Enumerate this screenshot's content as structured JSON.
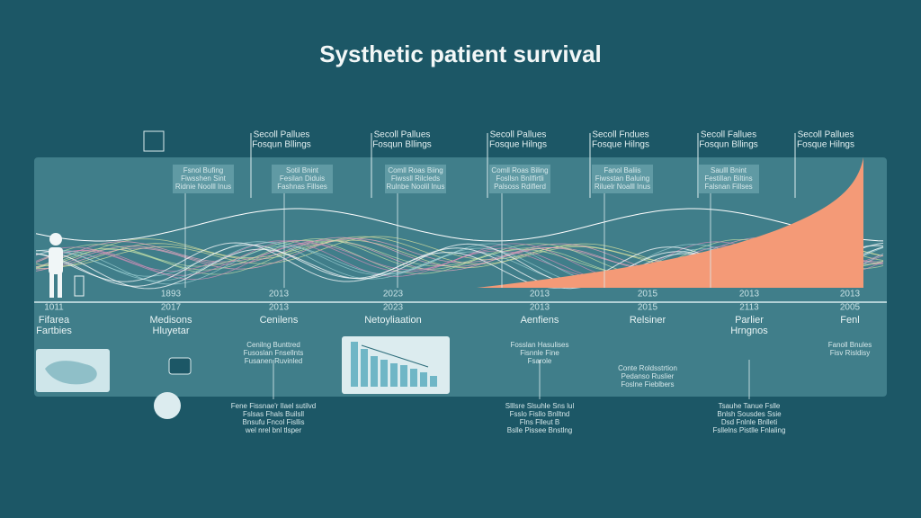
{
  "header": {
    "title": "Systhetic patient survival"
  },
  "top_callouts": [
    {
      "line1": "Secoll Pallues",
      "line2": "Fosqun Bllings"
    },
    {
      "line1": "Secoll Pallues",
      "line2": "Fosqun Bllings"
    },
    {
      "line1": "Secoll Pallues",
      "line2": "Fosque Hilngs"
    },
    {
      "line1": "Secoll Fndues",
      "line2": "Fosque Hilngs"
    },
    {
      "line1": "Secoll Fallues",
      "line2": "Fosqun Bllings"
    },
    {
      "line1": "Secoll Pallues",
      "line2": "Fosque Hilngs"
    }
  ],
  "notes": [
    {
      "lines": [
        "Fsnol Bufing",
        "Fiwsshen Sint",
        "Ridnie Noolll Inus"
      ]
    },
    {
      "lines": [
        "Sotil Bnint",
        "Fesilan Diduis",
        "Fashnas Fillses"
      ]
    },
    {
      "lines": [
        "Comll Roas Biing",
        "Fiwssll Rilcleds",
        "Rulnbe Noolil Inus"
      ]
    },
    {
      "lines": [
        "Comll Roas Biling",
        "Fosllsn Bnllfirtli",
        "Palsoss Rdiflerd"
      ]
    },
    {
      "lines": [
        "Fanol Baliis",
        "Fiwsstan Baluing",
        "Riluelr Noalll Inus"
      ]
    },
    {
      "lines": [
        "Saulll Bnint",
        "Festillan Biltins",
        "Falsnan Fillses"
      ]
    }
  ],
  "timeline_top_years": [
    "1893",
    "2013",
    "2023",
    "2013",
    "2015",
    "2013",
    "2013"
  ],
  "timeline": [
    {
      "year": "1011",
      "label": [
        "Fifarea",
        "Fartbies"
      ]
    },
    {
      "year": "2017",
      "label": [
        "Medisons",
        "Hluyetar"
      ]
    },
    {
      "year": "2013",
      "label": [
        "Cenilens"
      ]
    },
    {
      "year": "2023",
      "label": [
        "Netoyliaation"
      ]
    },
    {
      "year": "2013",
      "label": [
        "Aenfiens"
      ]
    },
    {
      "year": "2015",
      "label": [
        "Relsiner"
      ]
    },
    {
      "year": "2113",
      "label": [
        "Parlier",
        "Hrngnos"
      ]
    },
    {
      "year": "2005",
      "label": [
        "Fenl"
      ]
    }
  ],
  "lower_notes": [
    {
      "lines": [
        "Cenilng Bunttred",
        "Fusoslan Fnsellnts",
        "Fusanen Ruvinled"
      ]
    },
    {
      "lines": [
        "Fosslan Hasulises",
        "Fisnnle Fine",
        "Fsarole"
      ]
    },
    {
      "lines": [
        "Conte Roldsstrtion",
        "Pedanso Ruslier",
        "Foslne Fieblbers"
      ]
    },
    {
      "lines": [
        "Fanoll Bnules",
        "Fisv Risldisy"
      ]
    }
  ],
  "footnotes": [
    {
      "lines": [
        "Fene Fissnae'r Ilael sutilvd",
        "Fslsas Fhals Builsll",
        "Bnsufu Fncol Fisllis",
        "wel nrel bnl tlsper"
      ]
    },
    {
      "lines": [
        "Slllsre Slsuhle Sns lul",
        "Fsslo Fisllo Bnlltnd",
        "Flns Flleut B",
        "Bslle Pissee Bnstlng"
      ]
    },
    {
      "lines": [
        "Tsauhe Tanue Fslle",
        "Bnlsh Sousdes Ssie",
        "Dsd Fnlnle Bnlleti",
        "Fsllelns Pistlle Fnlaling"
      ]
    }
  ]
}
